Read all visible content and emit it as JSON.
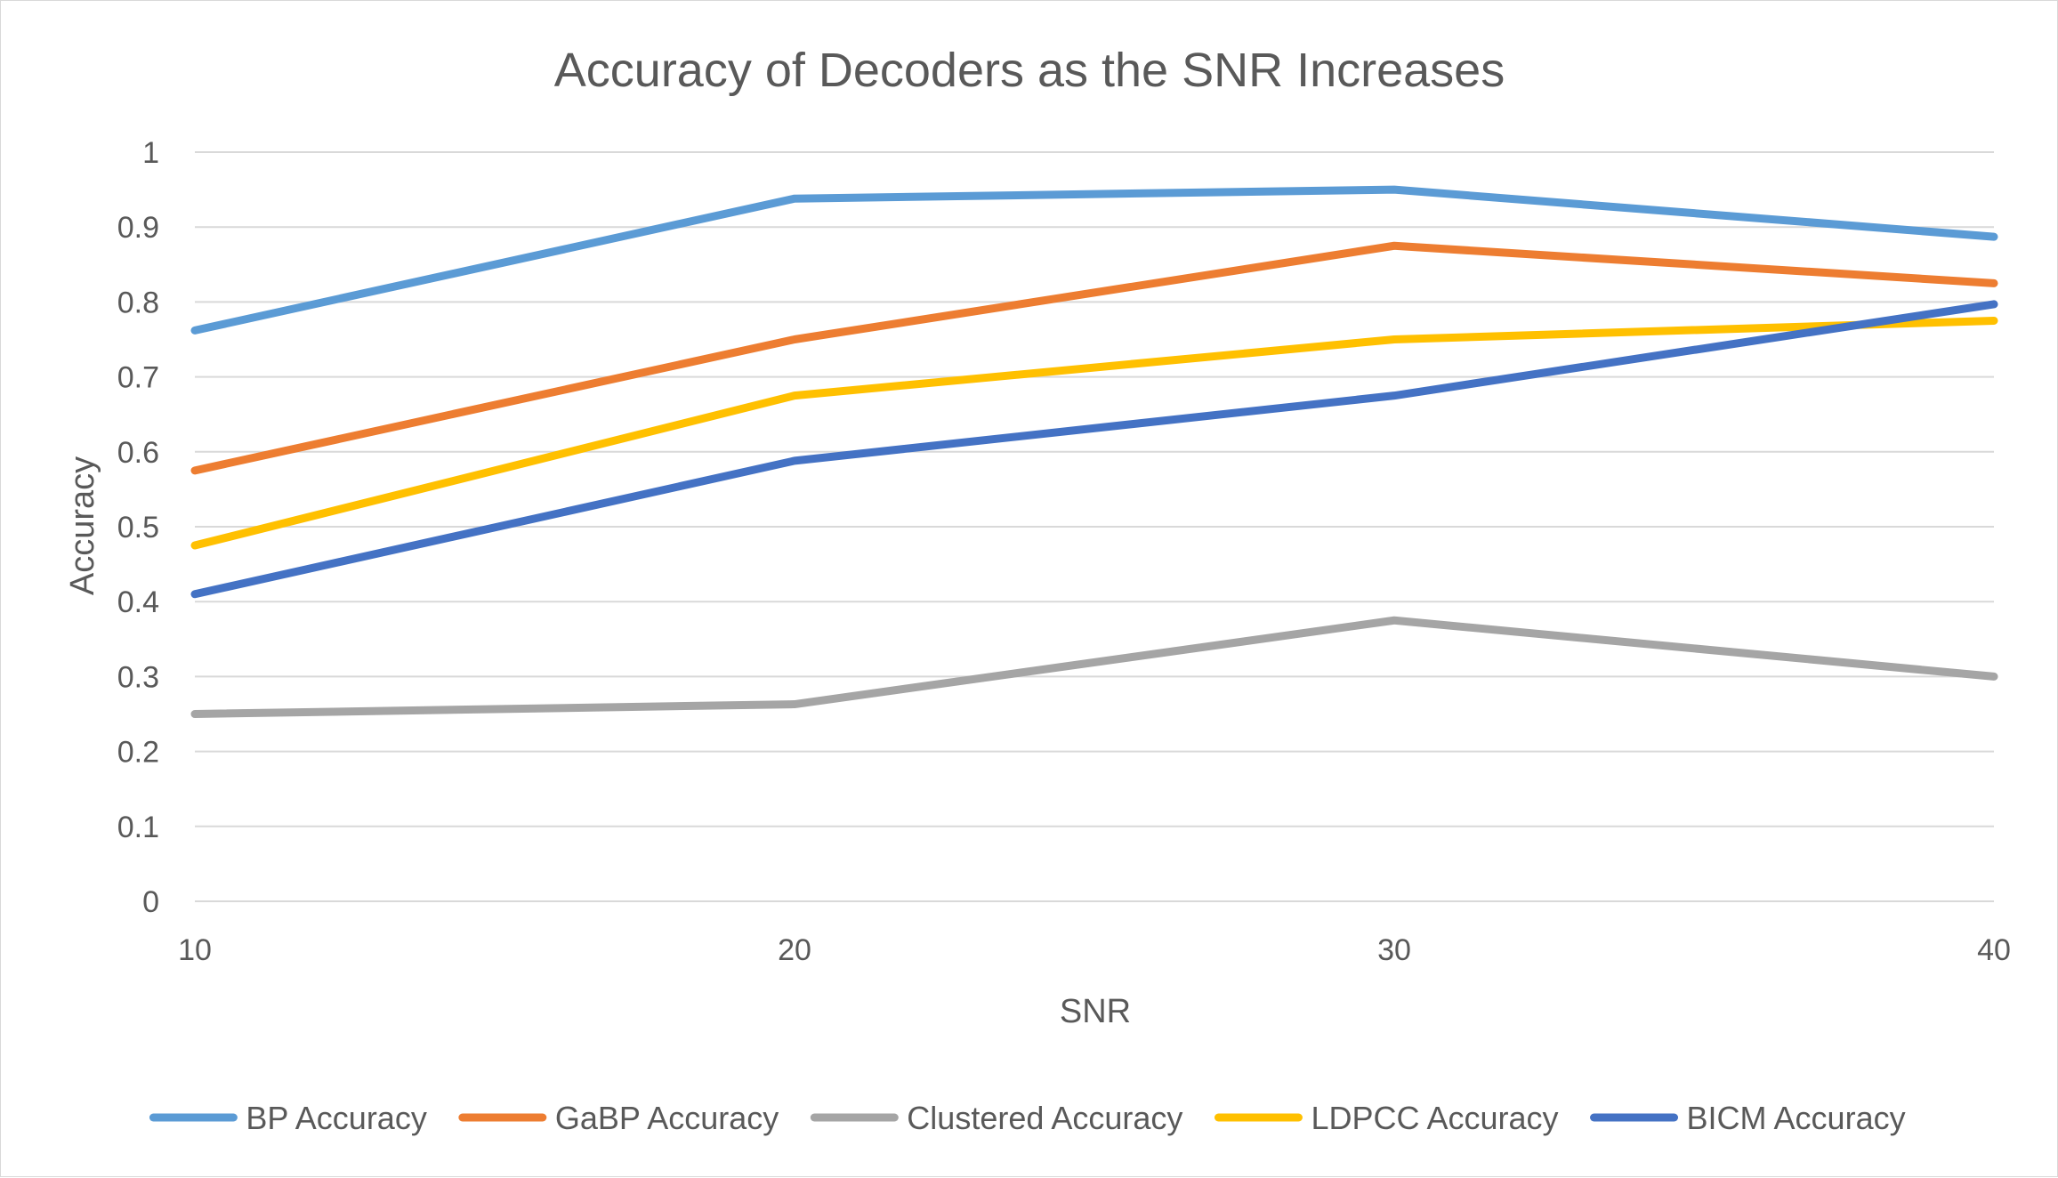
{
  "chart_data": {
    "type": "line",
    "title": "Accuracy of Decoders as the SNR Increases",
    "xlabel": "SNR",
    "ylabel": "Accuracy",
    "x": [
      10,
      20,
      30,
      40
    ],
    "x_ticks": [
      "10",
      "20",
      "30",
      "40"
    ],
    "ylim": [
      0,
      1
    ],
    "y_ticks": [
      "0",
      "0.1",
      "0.2",
      "0.3",
      "0.4",
      "0.5",
      "0.6",
      "0.7",
      "0.8",
      "0.9",
      "1"
    ],
    "grid": true,
    "legend_position": "bottom",
    "series": [
      {
        "name": "BP Accuracy",
        "color": "#5b9bd5",
        "values": [
          0.762,
          0.938,
          0.95,
          0.887
        ]
      },
      {
        "name": "GaBP Accuracy",
        "color": "#ed7d31",
        "values": [
          0.575,
          0.75,
          0.875,
          0.825
        ]
      },
      {
        "name": "Clustered Accuracy",
        "color": "#a5a5a5",
        "values": [
          0.25,
          0.263,
          0.375,
          0.3
        ]
      },
      {
        "name": "LDPCC Accuracy",
        "color": "#ffc000",
        "values": [
          0.475,
          0.675,
          0.75,
          0.775
        ]
      },
      {
        "name": "BICM Accuracy",
        "color": "#4472c4",
        "values": [
          0.41,
          0.588,
          0.675,
          0.797
        ]
      }
    ]
  }
}
